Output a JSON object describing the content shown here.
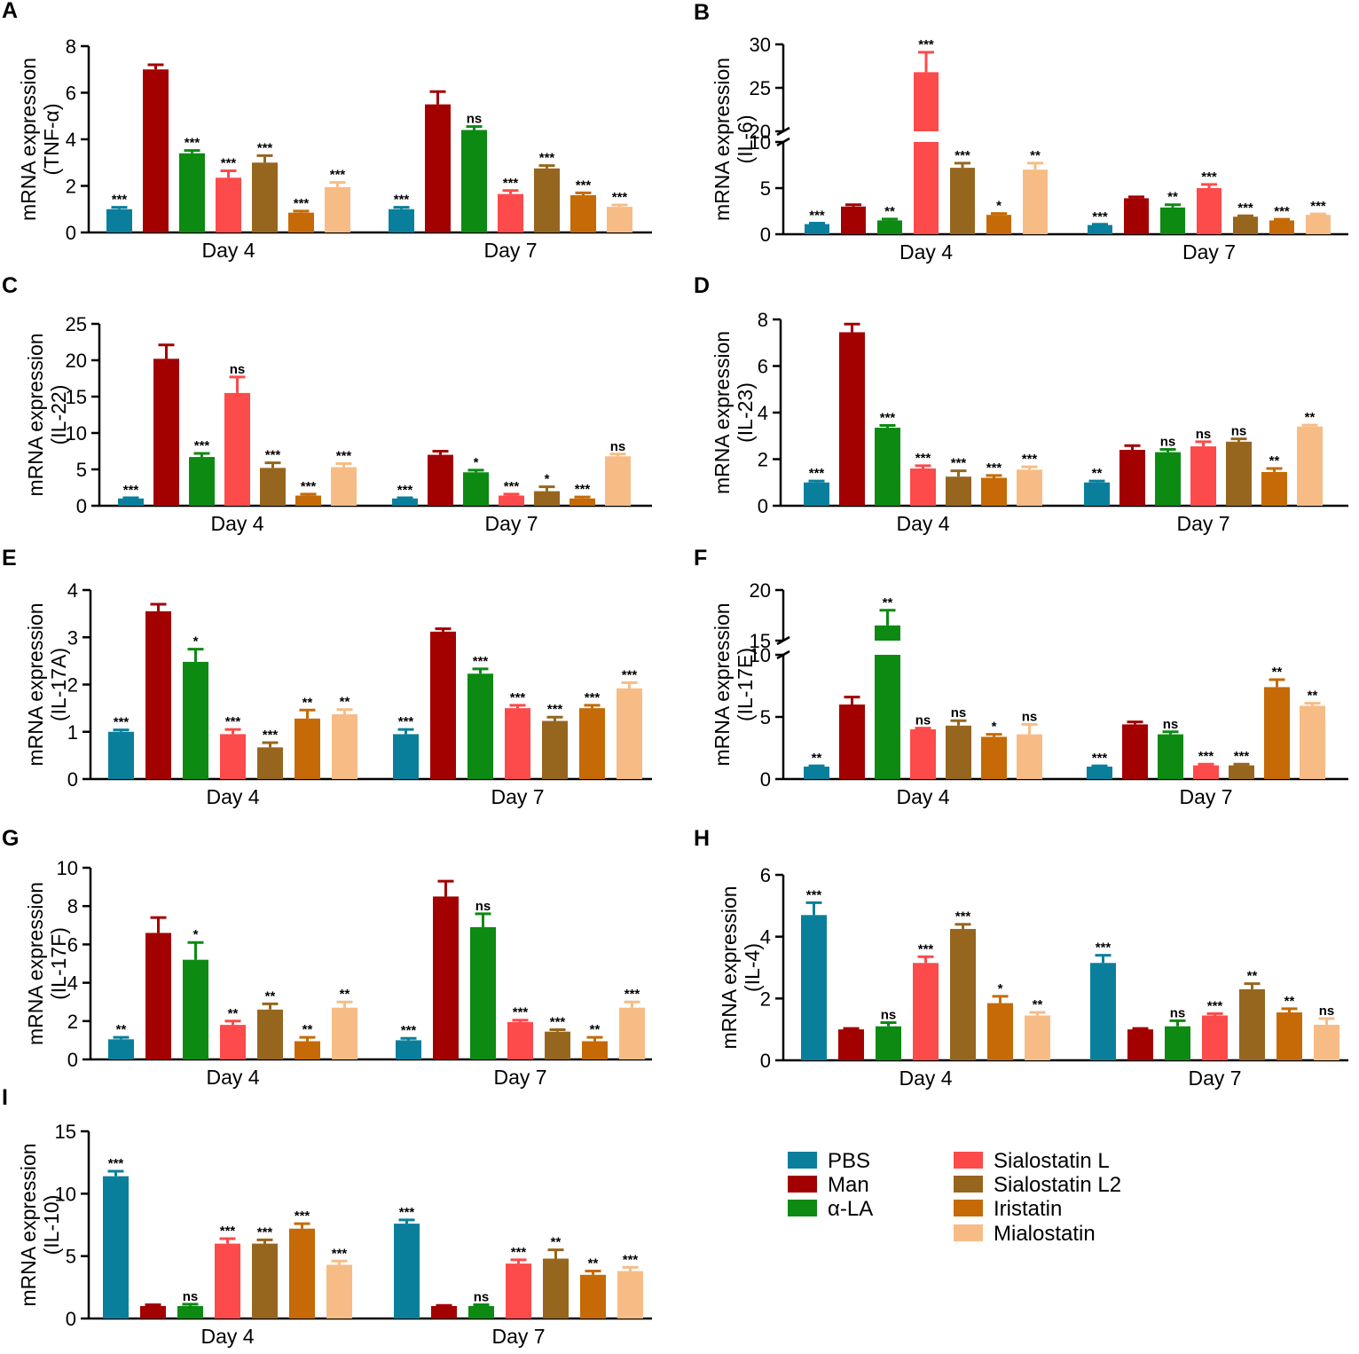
{
  "legend": {
    "items": [
      {
        "name": "PBS",
        "color": "#0a7f9c"
      },
      {
        "name": "Man",
        "color": "#a30000"
      },
      {
        "name": "α-LA",
        "color": "#0c8a12"
      },
      {
        "name": "Sialostatin L",
        "color": "#fd4a4a"
      },
      {
        "name": "Sialostatin L2",
        "color": "#96661e"
      },
      {
        "name": "Iristatin",
        "color": "#c56a06"
      },
      {
        "name": "Mialostatin",
        "color": "#f7bc85"
      }
    ]
  },
  "chart_data": [
    {
      "panel": "A",
      "type": "bar",
      "ylabel_lines": [
        "mRNA expression",
        "(TNF-α)"
      ],
      "groups": [
        "Day 4",
        "Day 7"
      ],
      "series_names": [
        "PBS",
        "Man",
        "α-LA",
        "Sialostatin L",
        "Sialostatin L2",
        "Iristatin",
        "Mialostatin"
      ],
      "yticks": [
        0,
        2,
        4,
        6,
        8
      ],
      "ylim": [
        0,
        8
      ],
      "values": [
        [
          1.0,
          7.0,
          3.4,
          2.35,
          3.0,
          0.85,
          1.95
        ],
        [
          1.0,
          5.5,
          4.4,
          1.65,
          2.75,
          1.6,
          1.1
        ]
      ],
      "errors": [
        [
          0.08,
          0.2,
          0.12,
          0.3,
          0.3,
          0.07,
          0.2
        ],
        [
          0.08,
          0.55,
          0.15,
          0.15,
          0.12,
          0.1,
          0.08
        ]
      ],
      "significance": [
        [
          "***",
          "",
          "***",
          "***",
          "***",
          "***",
          "***"
        ],
        [
          "***",
          "",
          "ns",
          "***",
          "***",
          "***",
          "***"
        ]
      ]
    },
    {
      "panel": "B",
      "type": "bar",
      "ylabel_lines": [
        "mRNA expression",
        "(IL-6)"
      ],
      "groups": [
        "Day 4",
        "Day 7"
      ],
      "series_names": [
        "PBS",
        "Man",
        "α-LA",
        "Sialostatin L",
        "Sialostatin L2",
        "Iristatin",
        "Mialostatin"
      ],
      "yticks": [
        0,
        5,
        10,
        20,
        25,
        30
      ],
      "ylim": [
        0,
        30
      ],
      "axis_break": {
        "from": 10,
        "to": 20
      },
      "values": [
        [
          1.1,
          3.0,
          1.5,
          26.8,
          7.2,
          2.1,
          7.0
        ],
        [
          1.0,
          3.9,
          2.9,
          5.0,
          1.9,
          1.5,
          2.1
        ]
      ],
      "errors": [
        [
          0.1,
          0.2,
          0.15,
          2.3,
          0.5,
          0.15,
          0.7
        ],
        [
          0.08,
          0.15,
          0.3,
          0.4,
          0.1,
          0.12,
          0.1
        ]
      ],
      "significance": [
        [
          "***",
          "",
          "**",
          "***",
          "***",
          "*",
          "**"
        ],
        [
          "***",
          "",
          "**",
          "***",
          "***",
          "***",
          "***"
        ]
      ]
    },
    {
      "panel": "C",
      "type": "bar",
      "ylabel_lines": [
        "mRNA expression",
        "(IL-22)"
      ],
      "groups": [
        "Day 4",
        "Day 7"
      ],
      "series_names": [
        "PBS",
        "Man",
        "α-LA",
        "Sialostatin L",
        "Sialostatin L2",
        "Iristatin",
        "Mialostatin"
      ],
      "yticks": [
        0,
        5,
        10,
        15,
        20,
        25
      ],
      "ylim": [
        0,
        25
      ],
      "values": [
        [
          1.0,
          20.2,
          6.7,
          15.5,
          5.2,
          1.4,
          5.3
        ],
        [
          1.0,
          7.0,
          4.6,
          1.4,
          2.0,
          1.0,
          6.8
        ]
      ],
      "errors": [
        [
          0.1,
          1.9,
          0.5,
          2.2,
          0.7,
          0.2,
          0.5
        ],
        [
          0.1,
          0.5,
          0.3,
          0.2,
          0.6,
          0.2,
          0.3
        ]
      ],
      "significance": [
        [
          "***",
          "",
          "***",
          "ns",
          "***",
          "***",
          "***"
        ],
        [
          "***",
          "",
          "*",
          "***",
          "*",
          "***",
          "ns"
        ]
      ]
    },
    {
      "panel": "D",
      "type": "bar",
      "ylabel_lines": [
        "mRNA expression",
        "(IL-23)"
      ],
      "groups": [
        "Day 4",
        "Day 7"
      ],
      "series_names": [
        "PBS",
        "Man",
        "α-LA",
        "Sialostatin L",
        "Sialostatin L2",
        "Iristatin",
        "Mialostatin"
      ],
      "yticks": [
        0,
        2,
        4,
        6,
        8
      ],
      "ylim": [
        0,
        8
      ],
      "values": [
        [
          1.0,
          7.45,
          3.35,
          1.6,
          1.25,
          1.2,
          1.55
        ],
        [
          1.0,
          2.4,
          2.3,
          2.55,
          2.75,
          1.45,
          3.4
        ]
      ],
      "errors": [
        [
          0.06,
          0.35,
          0.1,
          0.12,
          0.25,
          0.1,
          0.12
        ],
        [
          0.06,
          0.18,
          0.12,
          0.2,
          0.12,
          0.15,
          0.06
        ]
      ],
      "significance": [
        [
          "***",
          "",
          "***",
          "***",
          "***",
          "***",
          "***"
        ],
        [
          "**",
          "",
          "ns",
          "ns",
          "ns",
          "**",
          "**"
        ]
      ]
    },
    {
      "panel": "E",
      "type": "bar",
      "ylabel_lines": [
        "mRNA expression",
        "(IL-17A)"
      ],
      "groups": [
        "Day 4",
        "Day 7"
      ],
      "series_names": [
        "PBS",
        "Man",
        "α-LA",
        "Sialostatin L",
        "Sialostatin L2",
        "Iristatin",
        "Mialostatin"
      ],
      "yticks": [
        0,
        1,
        2,
        3,
        4
      ],
      "ylim": [
        0,
        4
      ],
      "values": [
        [
          1.0,
          3.55,
          2.48,
          0.95,
          0.67,
          1.28,
          1.37
        ],
        [
          0.95,
          3.12,
          2.23,
          1.5,
          1.23,
          1.5,
          1.92
        ]
      ],
      "errors": [
        [
          0.04,
          0.15,
          0.27,
          0.1,
          0.1,
          0.18,
          0.1
        ],
        [
          0.1,
          0.06,
          0.1,
          0.06,
          0.08,
          0.06,
          0.12
        ]
      ],
      "significance": [
        [
          "***",
          "",
          "*",
          "***",
          "***",
          "**",
          "**"
        ],
        [
          "***",
          "",
          "***",
          "***",
          "***",
          "***",
          "***"
        ]
      ]
    },
    {
      "panel": "F",
      "type": "bar",
      "ylabel_lines": [
        "mRNA expression",
        "(IL-17E)"
      ],
      "groups": [
        "Day 4",
        "Day 7"
      ],
      "series_names": [
        "PBS",
        "Man",
        "α-LA",
        "Sialostatin L",
        "Sialostatin L2",
        "Iristatin",
        "Mialostatin"
      ],
      "yticks": [
        0,
        5,
        10,
        15,
        20
      ],
      "ylim": [
        0,
        20
      ],
      "axis_break": {
        "from": 10,
        "to": 15
      },
      "values": [
        [
          1.0,
          6.0,
          16.5,
          4.0,
          4.3,
          3.4,
          3.6
        ],
        [
          1.0,
          4.4,
          3.6,
          1.1,
          1.1,
          7.4,
          5.9
        ]
      ],
      "errors": [
        [
          0.06,
          0.6,
          1.5,
          0.1,
          0.4,
          0.2,
          0.8
        ],
        [
          0.06,
          0.2,
          0.2,
          0.1,
          0.1,
          0.6,
          0.2
        ]
      ],
      "significance": [
        [
          "**",
          "",
          "**",
          "ns",
          "ns",
          "*",
          "ns"
        ],
        [
          "***",
          "",
          "ns",
          "***",
          "***",
          "**",
          "**"
        ]
      ]
    },
    {
      "panel": "G",
      "type": "bar",
      "ylabel_lines": [
        "mRNA expression",
        "(IL-17F)"
      ],
      "groups": [
        "Day 4",
        "Day 7"
      ],
      "series_names": [
        "PBS",
        "Man",
        "α-LA",
        "Sialostatin L",
        "Sialostatin L2",
        "Iristatin",
        "Mialostatin"
      ],
      "yticks": [
        0,
        2,
        4,
        6,
        8,
        10
      ],
      "ylim": [
        0,
        10
      ],
      "values": [
        [
          1.05,
          6.6,
          5.2,
          1.8,
          2.6,
          0.95,
          2.7
        ],
        [
          1.0,
          8.5,
          6.9,
          1.95,
          1.45,
          0.95,
          2.7
        ]
      ],
      "errors": [
        [
          0.1,
          0.8,
          0.9,
          0.2,
          0.3,
          0.2,
          0.3
        ],
        [
          0.1,
          0.8,
          0.7,
          0.1,
          0.1,
          0.2,
          0.3
        ]
      ],
      "significance": [
        [
          "**",
          "",
          "*",
          "**",
          "**",
          "**",
          "**"
        ],
        [
          "***",
          "",
          "ns",
          "***",
          "***",
          "**",
          "***"
        ]
      ]
    },
    {
      "panel": "H",
      "type": "bar",
      "ylabel_lines": [
        "mRNA expression",
        "(IL-4)"
      ],
      "groups": [
        "Day 4",
        "Day 7"
      ],
      "series_names": [
        "PBS",
        "Man",
        "α-LA",
        "Sialostatin L",
        "Sialostatin L2",
        "Iristatin",
        "Mialostatin"
      ],
      "yticks": [
        0,
        2,
        4,
        6
      ],
      "ylim": [
        0,
        6
      ],
      "values": [
        [
          4.7,
          1.0,
          1.1,
          3.15,
          4.25,
          1.85,
          1.45
        ],
        [
          3.15,
          1.0,
          1.1,
          1.45,
          2.3,
          1.55,
          1.15
        ]
      ],
      "errors": [
        [
          0.4,
          0.03,
          0.12,
          0.2,
          0.15,
          0.22,
          0.1
        ],
        [
          0.25,
          0.03,
          0.18,
          0.06,
          0.18,
          0.12,
          0.2
        ]
      ],
      "significance": [
        [
          "***",
          "",
          "ns",
          "***",
          "***",
          "*",
          "**"
        ],
        [
          "***",
          "",
          "ns",
          "***",
          "**",
          "**",
          "ns"
        ]
      ]
    },
    {
      "panel": "I",
      "type": "bar",
      "ylabel_lines": [
        "mRNA expression",
        "(IL-10)"
      ],
      "groups": [
        "Day 4",
        "Day 7"
      ],
      "series_names": [
        "PBS",
        "Man",
        "α-LA",
        "Sialostatin L",
        "Sialostatin L2",
        "Iristatin",
        "Mialostatin"
      ],
      "yticks": [
        0,
        5,
        10,
        15
      ],
      "ylim": [
        0,
        15
      ],
      "values": [
        [
          11.4,
          1.0,
          1.0,
          6.0,
          6.0,
          7.2,
          4.3
        ],
        [
          7.6,
          1.0,
          1.0,
          4.4,
          4.8,
          3.5,
          3.8
        ]
      ],
      "errors": [
        [
          0.4,
          0.1,
          0.15,
          0.4,
          0.3,
          0.4,
          0.3
        ],
        [
          0.3,
          0.05,
          0.1,
          0.3,
          0.7,
          0.3,
          0.3
        ]
      ],
      "significance": [
        [
          "***",
          "",
          "ns",
          "***",
          "***",
          "***",
          "***"
        ],
        [
          "***",
          "",
          "ns",
          "***",
          "**",
          "**",
          "***"
        ]
      ]
    }
  ]
}
